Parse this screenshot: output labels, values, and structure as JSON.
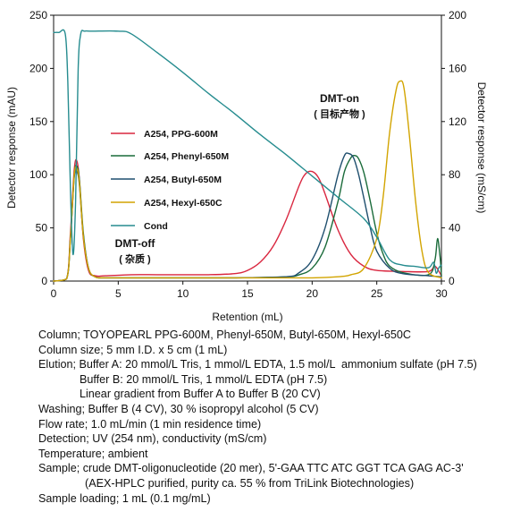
{
  "chart_data": {
    "type": "line",
    "xlabel": "Retention (mL)",
    "ylabel_left": "Detector response (mAU)",
    "ylabel_right": "Detector response (mS/cm)",
    "xlim": [
      0,
      30
    ],
    "ylim_left": [
      0,
      250
    ],
    "ylim_right": [
      0,
      200
    ],
    "x_ticks": [
      0,
      5,
      10,
      15,
      20,
      25,
      30
    ],
    "y_ticks_left": [
      0,
      50,
      100,
      150,
      200,
      250
    ],
    "y_ticks_right": [
      0,
      40,
      80,
      120,
      160,
      200
    ],
    "grid": false,
    "legend_position": "left-center",
    "colors": {
      "ppg": "#d9263f",
      "phenyl": "#1a6b3a",
      "butyl": "#1f4f6e",
      "hexyl": "#d2a400",
      "cond": "#268c8f"
    },
    "series": [
      {
        "name": "A254, PPG-600M",
        "key": "ppg",
        "axis": "left",
        "x": [
          0,
          1.0,
          1.3,
          1.6,
          1.8,
          2.0,
          2.3,
          2.7,
          3.2,
          4,
          6,
          8,
          10,
          12,
          14,
          15,
          16,
          17,
          18,
          19,
          19.5,
          20,
          20.5,
          21,
          22,
          23,
          24,
          25,
          27,
          29,
          29.5,
          30
        ],
        "y": [
          0,
          2,
          45,
          105,
          113,
          95,
          40,
          10,
          5,
          5,
          6,
          6,
          6,
          6,
          7,
          10,
          18,
          33,
          58,
          90,
          101,
          103,
          97,
          82,
          48,
          25,
          14,
          10,
          9,
          9,
          14,
          5
        ]
      },
      {
        "name": "A254, Phenyl-650M",
        "key": "phenyl",
        "axis": "left",
        "x": [
          0,
          1.0,
          1.3,
          1.6,
          1.8,
          2.0,
          2.3,
          2.7,
          3.2,
          4,
          6,
          10,
          14,
          18,
          19,
          20,
          21,
          22,
          22.5,
          23,
          23.3,
          23.6,
          24,
          24.5,
          25,
          25.5,
          26,
          27,
          29,
          29.5,
          29.7,
          29.9,
          30
        ],
        "y": [
          0,
          2,
          40,
          100,
          108,
          95,
          45,
          12,
          4,
          3,
          3,
          3,
          3,
          4,
          6,
          12,
          32,
          75,
          103,
          116,
          118,
          115,
          102,
          75,
          45,
          25,
          14,
          8,
          6,
          20,
          40,
          22,
          5
        ]
      },
      {
        "name": "A254, Butyl-650M",
        "key": "butyl",
        "axis": "left",
        "x": [
          0,
          1.0,
          1.3,
          1.6,
          1.8,
          2.0,
          2.3,
          2.7,
          3.2,
          4,
          6,
          10,
          14,
          18,
          19,
          20,
          21,
          22,
          22.5,
          22.8,
          23.2,
          23.6,
          24,
          24.5,
          25,
          26,
          27,
          29,
          30
        ],
        "y": [
          0,
          2,
          40,
          98,
          103,
          90,
          42,
          12,
          4,
          3,
          3,
          3,
          3,
          4,
          8,
          20,
          50,
          100,
          118,
          120,
          116,
          100,
          78,
          50,
          28,
          12,
          7,
          5,
          4
        ]
      },
      {
        "name": "A254, Hexyl-650C",
        "key": "hexyl",
        "axis": "left",
        "x": [
          0,
          1.0,
          1.3,
          1.6,
          1.8,
          2.0,
          2.3,
          2.7,
          3.2,
          4,
          8,
          12,
          16,
          20,
          22,
          23,
          24,
          25,
          25.5,
          26,
          26.5,
          26.8,
          27.1,
          27.5,
          28,
          28.5,
          29,
          30
        ],
        "y": [
          0,
          2,
          40,
          100,
          106,
          92,
          42,
          12,
          4,
          3,
          3,
          3,
          3,
          3,
          4,
          6,
          12,
          40,
          80,
          140,
          180,
          188,
          182,
          140,
          75,
          28,
          8,
          3
        ]
      },
      {
        "name": "Cond",
        "key": "cond",
        "axis": "right",
        "x": [
          0,
          0.4,
          0.9,
          1.1,
          1.3,
          1.5,
          1.7,
          1.9,
          2.1,
          2.4,
          3,
          5,
          6,
          8,
          10,
          12,
          14,
          16,
          18,
          20,
          22,
          24,
          25,
          26,
          27,
          28,
          29,
          29.4,
          29.6,
          29.8,
          30
        ],
        "y": [
          187,
          187,
          186,
          150,
          70,
          20,
          60,
          160,
          186,
          188,
          188,
          188,
          186,
          172,
          157,
          141,
          126,
          110,
          95,
          79,
          63,
          47,
          33,
          16,
          12,
          11,
          10,
          14,
          6,
          10,
          12
        ]
      }
    ],
    "annotations": {
      "dmt_on_title": "DMT-on",
      "dmt_on_sub": "( 目标产物 )",
      "dmt_off_title": "DMT-off",
      "dmt_off_sub": "( 杂质 )"
    }
  },
  "conditions": {
    "column": "Column; TOYOPEARL PPG-600M, Phenyl-650M, Butyl-650M, Hexyl-650C",
    "column_size": "Column size; 5 mm I.D. x 5 cm (1 mL)",
    "elution_a": "Elution; Buffer A: 20 mmol/L Tris, 1 mmol/L EDTA, 1.5 mol/L  ammonium sulfate (pH 7.5)",
    "elution_b": "Buffer B: 20 mmol/L Tris, 1 mmol/L EDTA (pH 7.5)",
    "gradient": "Linear gradient from Buffer A to Buffer B (20 CV)",
    "washing": "Washing; Buffer B (4 CV), 30 % isopropyl alcohol (5 CV)",
    "flow_rate": "Flow rate; 1.0 mL/min (1 min residence time)",
    "detection": "Detection; UV (254 nm), conductivity (mS/cm)",
    "temperature": "Temperature; ambient",
    "sample": "Sample; crude DMT-oligonucleotide (20 mer), 5'-GAA TTC ATC GGT TCA GAG AC-3'",
    "sample_note": "(AEX-HPLC purified, purity ca. 55 % from TriLink Biotechnologies)",
    "loading": "Sample loading; 1 mL (0.1 mg/mL)"
  }
}
